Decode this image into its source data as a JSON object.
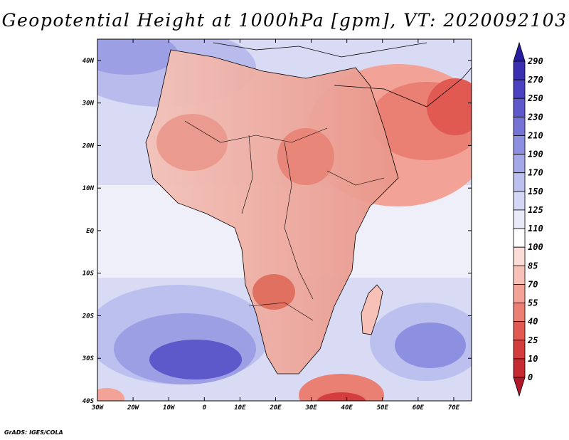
{
  "title": "Geopotential Height at 1000hPa [gpm], VT: 2020092103",
  "footer": "GrADS: IGES/COLA",
  "map": {
    "lat_range": [
      -40,
      45
    ],
    "lon_range": [
      -30,
      75
    ],
    "lat_ticks": [
      {
        "v": 40,
        "label": "40N"
      },
      {
        "v": 30,
        "label": "30N"
      },
      {
        "v": 20,
        "label": "20N"
      },
      {
        "v": 10,
        "label": "10N"
      },
      {
        "v": 0,
        "label": "EQ"
      },
      {
        "v": -10,
        "label": "10S"
      },
      {
        "v": -20,
        "label": "20S"
      },
      {
        "v": -30,
        "label": "30S"
      },
      {
        "v": -40,
        "label": "40S"
      }
    ],
    "lon_ticks": [
      {
        "v": -30,
        "label": "30W"
      },
      {
        "v": -20,
        "label": "20W"
      },
      {
        "v": -10,
        "label": "10W"
      },
      {
        "v": 0,
        "label": "0"
      },
      {
        "v": 10,
        "label": "10E"
      },
      {
        "v": 20,
        "label": "20E"
      },
      {
        "v": 30,
        "label": "30E"
      },
      {
        "v": 40,
        "label": "40E"
      },
      {
        "v": 50,
        "label": "50E"
      },
      {
        "v": 60,
        "label": "60E"
      },
      {
        "v": 70,
        "label": "70E"
      }
    ]
  },
  "colorbar": {
    "levels": [
      "0",
      "10",
      "25",
      "40",
      "55",
      "70",
      "85",
      "100",
      "110",
      "125",
      "150",
      "170",
      "190",
      "210",
      "230",
      "250",
      "270",
      "290"
    ],
    "colors": [
      "#b2182b",
      "#c62a33",
      "#d43d3d",
      "#e05a52",
      "#ea7f73",
      "#f2a297",
      "#f7c1b8",
      "#fbdcd6",
      "#ffffff",
      "#e8eaf8",
      "#d3d6f4",
      "#bcc0ee",
      "#a5a8e8",
      "#8d8fe0",
      "#7574d6",
      "#5d59cb",
      "#4a42c0",
      "#3a2fb0",
      "#2a1ea0"
    ]
  }
}
